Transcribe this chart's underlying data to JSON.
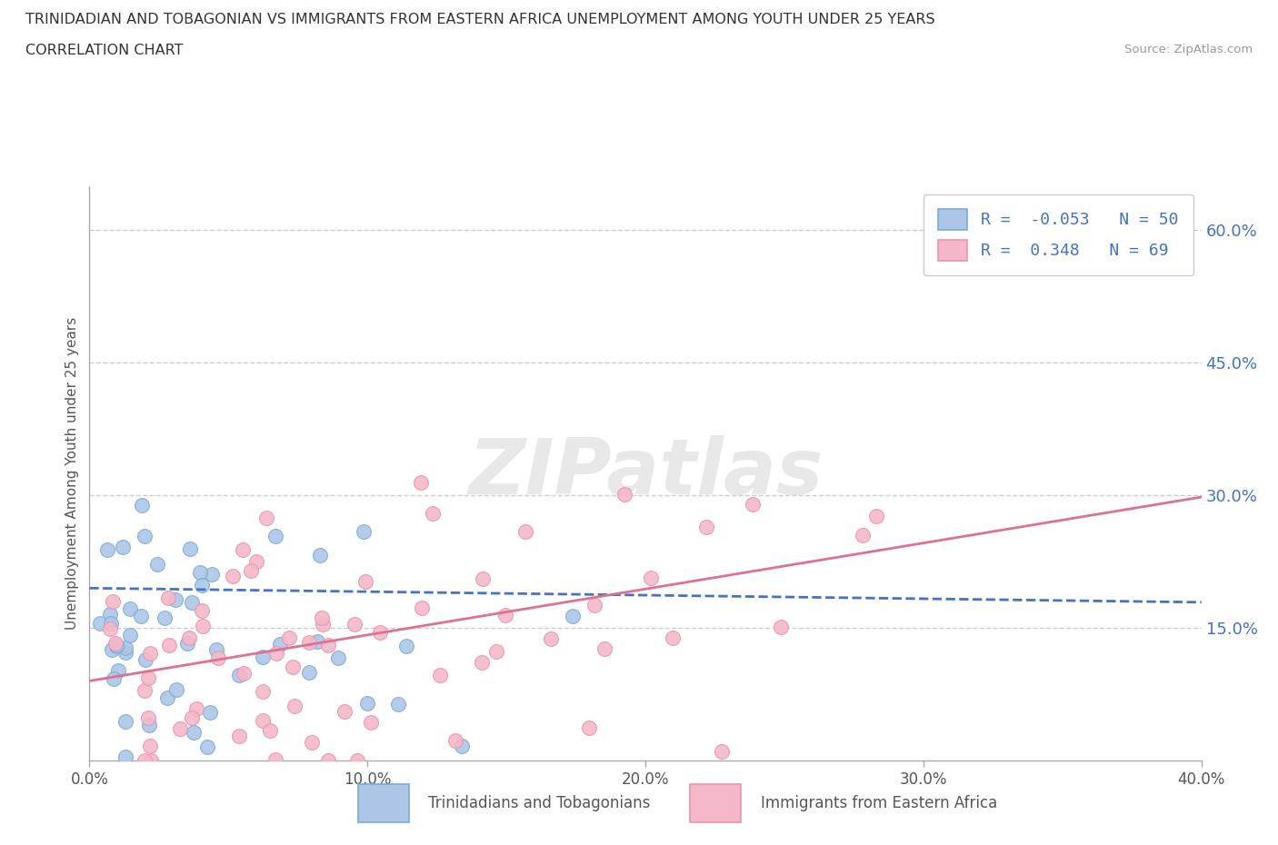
{
  "title_line1": "TRINIDADIAN AND TOBAGONIAN VS IMMIGRANTS FROM EASTERN AFRICA UNEMPLOYMENT AMONG YOUTH UNDER 25 YEARS",
  "title_line2": "CORRELATION CHART",
  "source": "Source: ZipAtlas.com",
  "ylabel": "Unemployment Among Youth under 25 years",
  "xlim": [
    0.0,
    0.4
  ],
  "ylim": [
    0.0,
    0.65
  ],
  "xticks": [
    0.0,
    0.1,
    0.2,
    0.3,
    0.4
  ],
  "xtick_labels": [
    "0.0%",
    "10.0%",
    "20.0%",
    "30.0%",
    "40.0%"
  ],
  "ytick_positions": [
    0.15,
    0.3,
    0.45,
    0.6
  ],
  "ytick_labels": [
    "15.0%",
    "30.0%",
    "45.0%",
    "60.0%"
  ],
  "blue_fill": "#adc6e8",
  "pink_fill": "#f5b8c8",
  "blue_edge": "#7aadd4",
  "pink_edge": "#e895ae",
  "blue_line_color": "#4472c4",
  "pink_line_color": "#e07090",
  "blue_R": -0.053,
  "blue_N": 50,
  "pink_R": 0.348,
  "pink_N": 69,
  "watermark": "ZIPatlas",
  "grid_color": "#cccccc",
  "background_color": "#ffffff",
  "legend_label_blue": "Trinidadians and Tobagonians",
  "legend_label_pink": "Immigrants from Eastern Africa",
  "blue_trend": [
    0.195,
    -0.04
  ],
  "pink_trend": [
    0.09,
    0.52
  ]
}
